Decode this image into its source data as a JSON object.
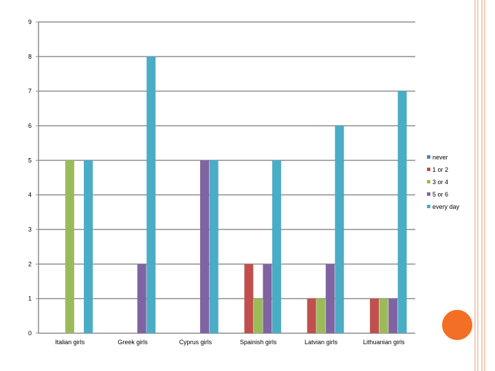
{
  "decor": {
    "line_colors": [
      "#f4cbb5",
      "#f4cbb5",
      "#f4cbb5",
      "#f4cbb5"
    ],
    "circle_color": "#f26f25"
  },
  "chart_data": {
    "type": "bar",
    "categories": [
      "Italian girls",
      "Greek girls",
      "Cyprus girls",
      "Spainish girls",
      "Latvian girls",
      "Lithuanian girls"
    ],
    "series": [
      {
        "name": "never",
        "color": "#4f81bd",
        "values": [
          0,
          0,
          0,
          0,
          0,
          0
        ]
      },
      {
        "name": "1 or 2",
        "color": "#c0504d",
        "values": [
          0,
          0,
          0,
          2,
          1,
          1
        ]
      },
      {
        "name": "3 or 4",
        "color": "#9bbb59",
        "values": [
          5,
          0,
          0,
          1,
          1,
          1
        ]
      },
      {
        "name": "5 or 6",
        "color": "#8064a2",
        "values": [
          0,
          2,
          5,
          2,
          2,
          1
        ]
      },
      {
        "name": "every day",
        "color": "#4bacc6",
        "values": [
          5,
          8,
          5,
          5,
          6,
          7
        ]
      }
    ],
    "y_ticks": [
      "0",
      "1",
      "2",
      "3",
      "4",
      "5",
      "6",
      "7",
      "8",
      "9"
    ],
    "ylim": [
      0,
      9
    ],
    "grid": true,
    "legend": "right"
  }
}
